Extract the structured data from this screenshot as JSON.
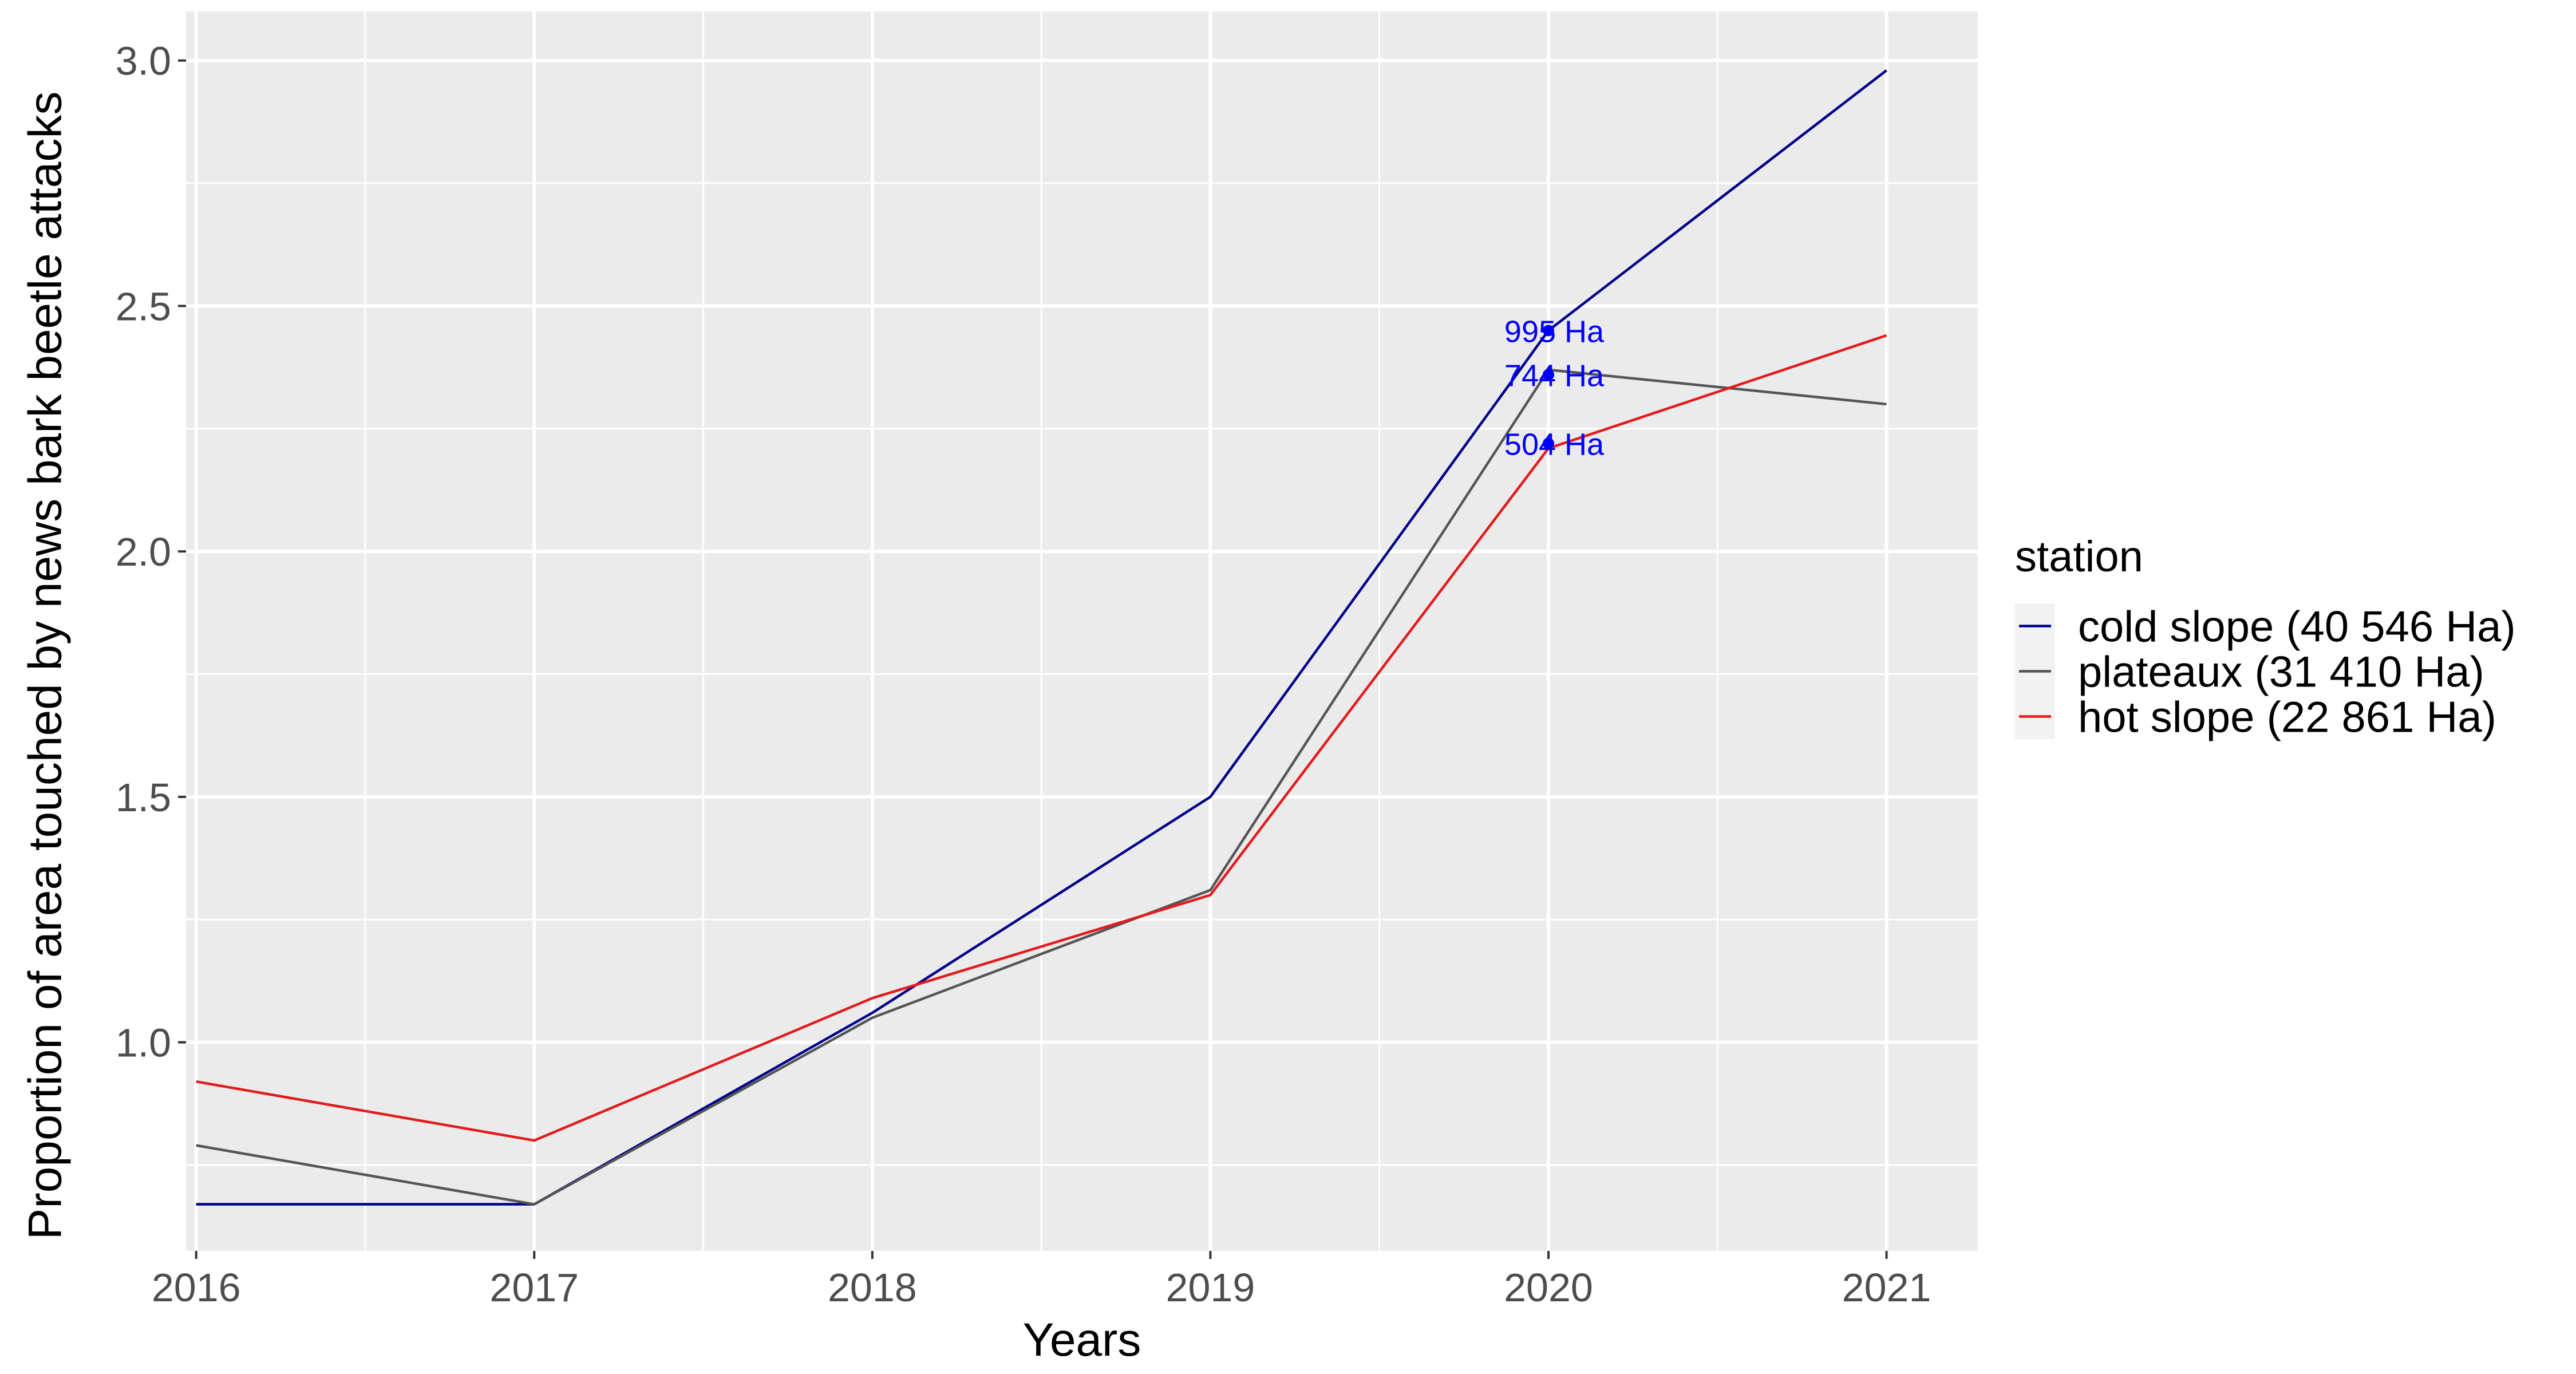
{
  "chart_data": {
    "type": "line",
    "title": "",
    "xlabel": "Years",
    "ylabel": "Proportion of area touched by news bark beetle attacks",
    "x": [
      2016,
      2017,
      2018,
      2019,
      2020,
      2021
    ],
    "xlim": [
      2015.97,
      2021.27
    ],
    "ylim": [
      0.575,
      3.1
    ],
    "yticks": [
      1.0,
      1.5,
      2.0,
      2.5,
      3.0
    ],
    "ytick_labels": [
      "1.0",
      "1.5",
      "2.0",
      "2.5",
      "3.0"
    ],
    "xtick_labels": [
      "2016",
      "2017",
      "2018",
      "2019",
      "2020",
      "2021"
    ],
    "grid": true,
    "panel_background": "#ebebeb",
    "grid_color": "#ffffff",
    "legend": {
      "title": "station",
      "position": "right"
    },
    "series": [
      {
        "name": "cold slope (40 546 Ha)",
        "color": "#00008b",
        "values": [
          0.67,
          0.67,
          1.06,
          1.5,
          2.45,
          2.98
        ]
      },
      {
        "name": "plateaux (31 410 Ha)",
        "color": "#555555",
        "values": [
          0.79,
          0.67,
          1.05,
          1.31,
          2.37,
          2.3
        ]
      },
      {
        "name": "hot slope (22 861 Ha)",
        "color": "#e41a1c",
        "values": [
          0.92,
          0.8,
          1.09,
          1.3,
          2.21,
          2.44
        ]
      }
    ],
    "annotations": [
      {
        "text": "995 Ha",
        "x": 2020,
        "y": 2.45,
        "point_y": 2.45,
        "color": "#0000ff"
      },
      {
        "text": "744 Ha",
        "x": 2020,
        "y": 2.36,
        "point_y": 2.36,
        "color": "#0000ff"
      },
      {
        "text": "504 Ha",
        "x": 2020,
        "y": 2.22,
        "point_y": 2.22,
        "color": "#0000ff"
      }
    ]
  }
}
